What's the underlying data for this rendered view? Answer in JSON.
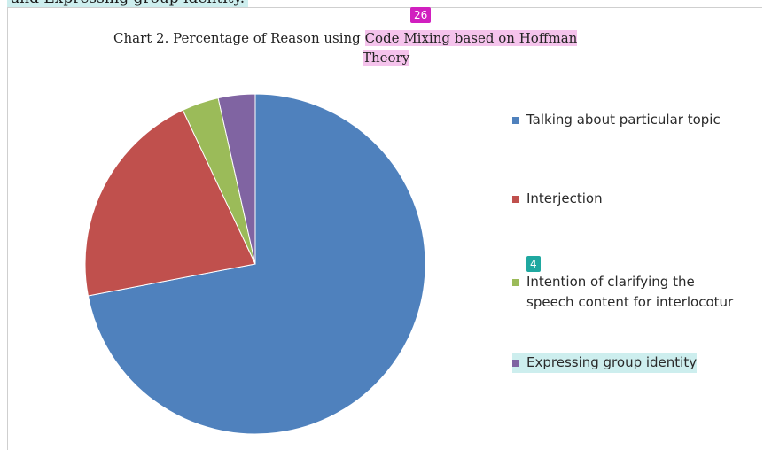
{
  "page": {
    "top_text": "and Expressing group identity.",
    "badge_title": "26",
    "badge_legend": "4"
  },
  "chart_data": {
    "type": "pie",
    "title": "Chart 2. Percentage of Reason using Code Mixing based on Hoffman Theory",
    "title_parts": {
      "line1_plain": "Chart 2. Percentage of Reason using ",
      "line1_highlight": "Code Mixing based on Hoffman",
      "line2_highlight": "Theory"
    },
    "slices": [
      {
        "label": "Talking about particular topic",
        "value": 72,
        "color": "#4f81bd"
      },
      {
        "label": "Interjection",
        "value": 21,
        "color": "#c0504d"
      },
      {
        "label": "Intention of clarifying the speech content for interlocotur",
        "value": 3.5,
        "color": "#9bbb59"
      },
      {
        "label": "Expressing group identity",
        "value": 3.5,
        "color": "#8064a2"
      }
    ],
    "legend_position": "right"
  }
}
